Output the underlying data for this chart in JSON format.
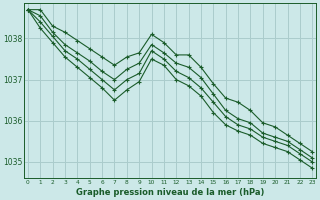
{
  "background_color": "#cce8e8",
  "grid_color": "#aacccc",
  "line_color": "#1a5c2a",
  "x_ticks": [
    0,
    1,
    2,
    3,
    4,
    5,
    6,
    7,
    8,
    9,
    10,
    11,
    12,
    13,
    14,
    15,
    16,
    17,
    18,
    19,
    20,
    21,
    22,
    23
  ],
  "y_ticks": [
    1035,
    1036,
    1037,
    1038
  ],
  "ylim": [
    1034.6,
    1038.85
  ],
  "xlim": [
    -0.3,
    23.3
  ],
  "xlabel": "Graphe pression niveau de la mer (hPa)",
  "series": [
    [
      1038.7,
      1038.7,
      1038.3,
      1038.15,
      1037.95,
      1037.75,
      1037.55,
      1037.35,
      1037.55,
      1037.65,
      1038.1,
      1037.9,
      1037.6,
      1037.6,
      1037.3,
      1036.9,
      1036.55,
      1036.45,
      1036.25,
      1035.95,
      1035.85,
      1035.65,
      1035.45,
      1035.25
    ],
    [
      1038.7,
      1038.55,
      1038.15,
      1037.85,
      1037.65,
      1037.45,
      1037.2,
      1037.0,
      1037.25,
      1037.4,
      1037.85,
      1037.65,
      1037.4,
      1037.3,
      1037.05,
      1036.65,
      1036.25,
      1036.05,
      1035.95,
      1035.7,
      1035.6,
      1035.5,
      1035.3,
      1035.1
    ],
    [
      1038.7,
      1038.4,
      1038.05,
      1037.7,
      1037.5,
      1037.25,
      1037.0,
      1036.75,
      1037.0,
      1037.15,
      1037.7,
      1037.5,
      1037.2,
      1037.05,
      1036.8,
      1036.45,
      1036.1,
      1035.9,
      1035.8,
      1035.6,
      1035.5,
      1035.4,
      1035.2,
      1035.0
    ],
    [
      1038.7,
      1038.25,
      1037.9,
      1037.55,
      1037.3,
      1037.05,
      1036.8,
      1036.5,
      1036.75,
      1036.95,
      1037.5,
      1037.35,
      1037.0,
      1036.85,
      1036.6,
      1036.2,
      1035.9,
      1035.75,
      1035.65,
      1035.45,
      1035.35,
      1035.25,
      1035.05,
      1034.85
    ]
  ]
}
